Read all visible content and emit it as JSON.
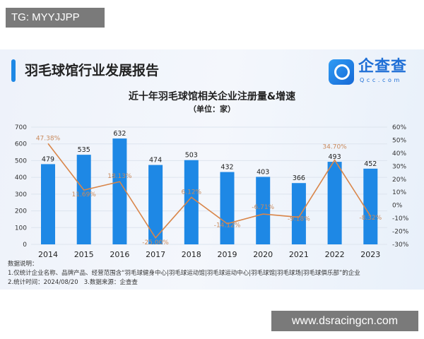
{
  "overlay_label": "TG: MYYJJPP",
  "watermark": "www.dsracingcn.com",
  "header": {
    "title": "羽毛球馆行业发展报告",
    "logo_text": "企查查",
    "logo_sub": "Qcc.com"
  },
  "chart_data": {
    "type": "bar",
    "title": "近十年羽毛球馆相关企业注册量&增速",
    "subtitle": "（单位：家）",
    "categories": [
      "2014",
      "2015",
      "2016",
      "2017",
      "2018",
      "2019",
      "2020",
      "2021",
      "2022",
      "2023"
    ],
    "series": [
      {
        "type": "bar",
        "axis": "left",
        "values": [
          479,
          535,
          632,
          474,
          503,
          432,
          403,
          366,
          493,
          452
        ],
        "color": "#1e88e5"
      },
      {
        "type": "line",
        "axis": "right",
        "values": [
          47.38,
          11.69,
          18.13,
          -25.0,
          6.12,
          -14.12,
          -6.71,
          -9.18,
          34.7,
          -8.32
        ],
        "labels": [
          "47.38%",
          "11.69%",
          "18.13%",
          "-25.00%",
          "6.12%",
          "-14.12%",
          "-6.71%",
          "-9.18%",
          "34.70%",
          "-8.32%"
        ],
        "color": "#d9864a"
      }
    ],
    "ylim_left": [
      0,
      700
    ],
    "yticks_left": [
      "0",
      "100",
      "200",
      "300",
      "400",
      "500",
      "600",
      "700"
    ],
    "ylim_right": [
      -30,
      60
    ],
    "yticks_right": [
      "-30%",
      "-20%",
      "-10%",
      "0%",
      "10%",
      "20%",
      "30%",
      "40%",
      "50%",
      "60%"
    ],
    "grid": true
  },
  "notes": {
    "heading": "数据说明：",
    "line1": "1.仅统计企业名称、品牌产品、经营范围含“羽毛球健身中心|羽毛球运动馆|羽毛球运动中心|羽毛球馆|羽毛球场|羽毛球俱乐部”的企业",
    "line2": "2.统计时间：2024/08/20   3.数据来源：企查查"
  }
}
